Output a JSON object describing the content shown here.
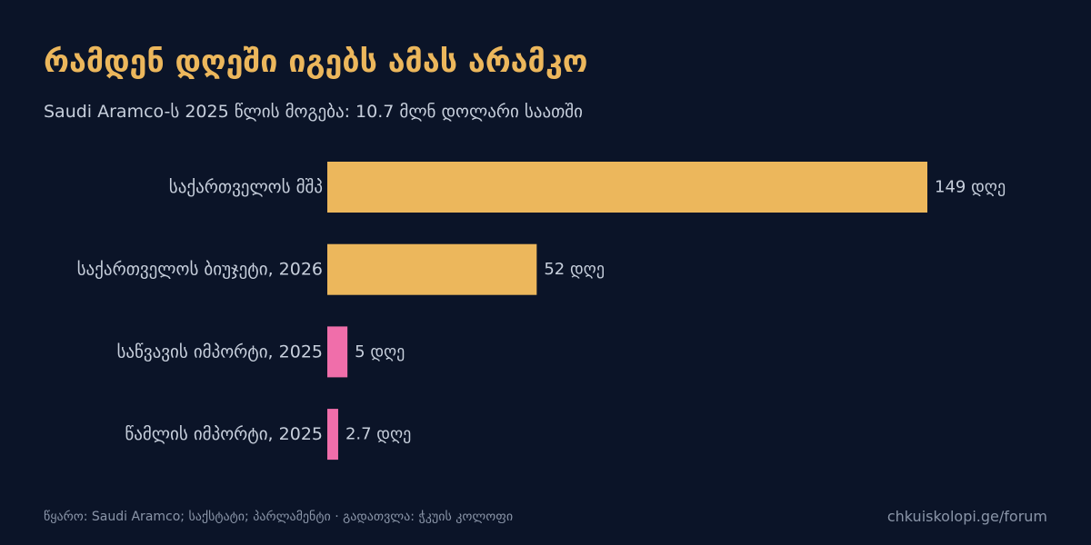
{
  "colors": {
    "background": "#0b1428",
    "title": "#ecb75c",
    "text": "#c7cfdc",
    "muted": "#8a95a8",
    "bar_gold": "#ecb75c",
    "bar_pink": "#f06eaa"
  },
  "chart_data": {
    "type": "bar",
    "orientation": "horizontal",
    "title": "რამდენ დღეში იგებს ამას არამკო",
    "subtitle": "Saudi Aramco-ს 2025 წლის მოგება: 10.7 მლნ დოლარი საათში",
    "categories": [
      "საქართველოს მშპ",
      "საქართველოს ბიუჯეტი, 2026",
      "საწვავის იმპორტი, 2025",
      "წამლის იმპორტი, 2025"
    ],
    "values": [
      149,
      52,
      5,
      2.7
    ],
    "value_labels": [
      "149 დღე",
      "52 დღე",
      "5 დღე",
      "2.7 დღე"
    ],
    "bar_colors": [
      "#ecb75c",
      "#ecb75c",
      "#f06eaa",
      "#f06eaa"
    ],
    "xlim": [
      0,
      149
    ],
    "grid": false,
    "legend": "none"
  },
  "footer": {
    "source": "წყარო: Saudi Aramco; საქსტატი; პარლამენტი · გადათვლა: ჭკუის კოლოფი",
    "site": "chkuiskolopi.ge/forum"
  }
}
